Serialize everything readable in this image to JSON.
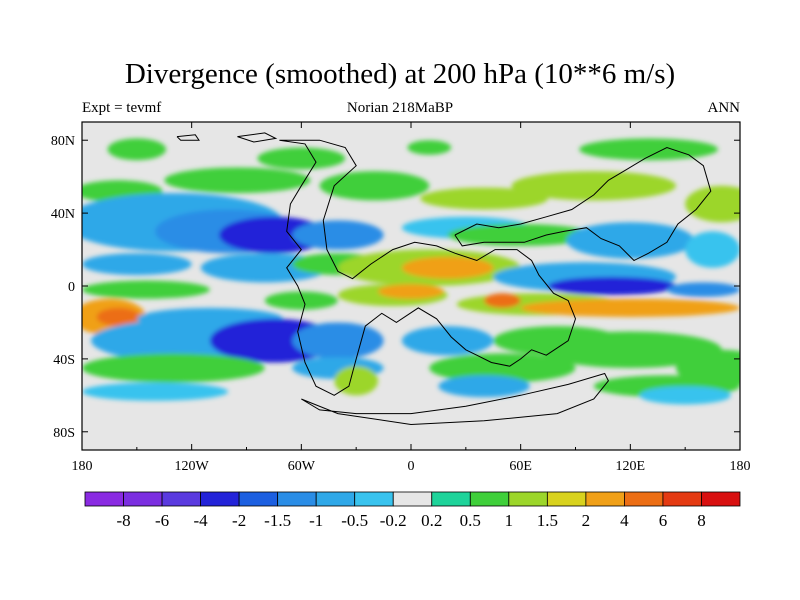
{
  "title": "Divergence (smoothed) at 200 hPa (10**6 m/s)",
  "subtitle_left": "Expt = tevmf",
  "subtitle_center": "Norian 218MaBP",
  "subtitle_right": "ANN",
  "chart_data": {
    "type": "heatmap",
    "title": "Divergence (smoothed) at 200 hPa (10**6 m/s)",
    "xlabel": "",
    "ylabel": "",
    "xlim": [
      -180,
      180
    ],
    "ylim": [
      -90,
      90
    ],
    "x_ticks": [
      -180,
      -120,
      -60,
      0,
      60,
      120,
      180
    ],
    "x_tick_labels": [
      "180",
      "120W",
      "60W",
      "0",
      "60E",
      "120E",
      "180"
    ],
    "y_ticks": [
      80,
      40,
      0,
      -40,
      -80
    ],
    "y_tick_labels": [
      "80N",
      "40N",
      "0",
      "40S",
      "80S"
    ],
    "colorbar": {
      "labels": [
        "-8",
        "-6",
        "-4",
        "-2",
        "-1.5",
        "-1",
        "-0.5",
        "-0.2",
        "0.2",
        "0.5",
        "1",
        "1.5",
        "2",
        "4",
        "6",
        "8"
      ],
      "colors": [
        "#8a2be2",
        "#7b2ee0",
        "#5a3adf",
        "#2323d8",
        "#1c5fe0",
        "#2a8de6",
        "#2fa8e8",
        "#39c3ee",
        "#e6e6e6",
        "#1ed39a",
        "#3fcf3a",
        "#9cd62a",
        "#d8d21e",
        "#f0a018",
        "#ec6e14",
        "#e43a12",
        "#d81010"
      ]
    },
    "background_color": "#e6e6e6",
    "blobs": [
      {
        "lon": -150,
        "lat": 75,
        "rx": 16,
        "ry": 6,
        "value": 0.7
      },
      {
        "lon": -60,
        "lat": 70,
        "rx": 24,
        "ry": 6,
        "value": 0.7
      },
      {
        "lon": 10,
        "lat": 76,
        "rx": 12,
        "ry": 4,
        "value": 0.7
      },
      {
        "lon": 130,
        "lat": 75,
        "rx": 38,
        "ry": 6,
        "value": 0.7
      },
      {
        "lon": -160,
        "lat": 52,
        "rx": 24,
        "ry": 6,
        "value": 0.8
      },
      {
        "lon": -95,
        "lat": 58,
        "rx": 40,
        "ry": 7,
        "value": 0.7
      },
      {
        "lon": -20,
        "lat": 55,
        "rx": 30,
        "ry": 8,
        "value": 0.8
      },
      {
        "lon": 40,
        "lat": 48,
        "rx": 35,
        "ry": 6,
        "value": 1.2
      },
      {
        "lon": 100,
        "lat": 55,
        "rx": 45,
        "ry": 8,
        "value": 1.0
      },
      {
        "lon": 170,
        "lat": 45,
        "rx": 20,
        "ry": 10,
        "value": 1.0
      },
      {
        "lon": -130,
        "lat": 35,
        "rx": 60,
        "ry": 16,
        "value": -0.6
      },
      {
        "lon": -100,
        "lat": 30,
        "rx": 40,
        "ry": 12,
        "value": -1.2
      },
      {
        "lon": -75,
        "lat": 28,
        "rx": 30,
        "ry": 10,
        "value": -3
      },
      {
        "lon": -40,
        "lat": 28,
        "rx": 25,
        "ry": 8,
        "value": -1.2
      },
      {
        "lon": 30,
        "lat": 32,
        "rx": 35,
        "ry": 6,
        "value": -0.3
      },
      {
        "lon": 60,
        "lat": 28,
        "rx": 40,
        "ry": 6,
        "value": 0.6
      },
      {
        "lon": 120,
        "lat": 25,
        "rx": 35,
        "ry": 10,
        "value": -0.6
      },
      {
        "lon": 165,
        "lat": 20,
        "rx": 15,
        "ry": 10,
        "value": -0.4
      },
      {
        "lon": -150,
        "lat": 12,
        "rx": 30,
        "ry": 6,
        "value": -0.6
      },
      {
        "lon": -145,
        "lat": -2,
        "rx": 35,
        "ry": 5,
        "value": 0.6
      },
      {
        "lon": -80,
        "lat": 10,
        "rx": 35,
        "ry": 8,
        "value": -0.6
      },
      {
        "lon": -40,
        "lat": 12,
        "rx": 25,
        "ry": 6,
        "value": 0.6
      },
      {
        "lon": 10,
        "lat": 10,
        "rx": 50,
        "ry": 10,
        "value": 1.2
      },
      {
        "lon": 20,
        "lat": 10,
        "rx": 25,
        "ry": 6,
        "value": 3
      },
      {
        "lon": 95,
        "lat": 5,
        "rx": 50,
        "ry": 8,
        "value": -0.7
      },
      {
        "lon": 110,
        "lat": 0,
        "rx": 35,
        "ry": 5,
        "value": -3
      },
      {
        "lon": 160,
        "lat": -2,
        "rx": 20,
        "ry": 4,
        "value": -1.2
      },
      {
        "lon": -10,
        "lat": -5,
        "rx": 30,
        "ry": 6,
        "value": 1.2
      },
      {
        "lon": 0,
        "lat": -3,
        "rx": 18,
        "ry": 4,
        "value": 3
      },
      {
        "lon": -60,
        "lat": -8,
        "rx": 20,
        "ry": 5,
        "value": 0.7
      },
      {
        "lon": 70,
        "lat": -10,
        "rx": 45,
        "ry": 6,
        "value": 1.2
      },
      {
        "lon": 50,
        "lat": -8,
        "rx": 10,
        "ry": 4,
        "value": 5
      },
      {
        "lon": 120,
        "lat": -12,
        "rx": 60,
        "ry": 5,
        "value": 3
      },
      {
        "lon": -165,
        "lat": -17,
        "rx": 20,
        "ry": 10,
        "value": 3
      },
      {
        "lon": -160,
        "lat": -17,
        "rx": 12,
        "ry": 5,
        "value": 5
      },
      {
        "lon": -110,
        "lat": -18,
        "rx": 40,
        "ry": 6,
        "value": -0.6
      },
      {
        "lon": -120,
        "lat": -30,
        "rx": 55,
        "ry": 12,
        "value": -0.7
      },
      {
        "lon": -75,
        "lat": -30,
        "rx": 35,
        "ry": 12,
        "value": -3
      },
      {
        "lon": -40,
        "lat": -30,
        "rx": 25,
        "ry": 10,
        "value": -1.2
      },
      {
        "lon": 20,
        "lat": -30,
        "rx": 25,
        "ry": 8,
        "value": -0.6
      },
      {
        "lon": 120,
        "lat": -35,
        "rx": 50,
        "ry": 10,
        "value": 0.7
      },
      {
        "lon": 80,
        "lat": -30,
        "rx": 35,
        "ry": 8,
        "value": 0.7
      },
      {
        "lon": -130,
        "lat": -45,
        "rx": 50,
        "ry": 8,
        "value": 0.7
      },
      {
        "lon": -40,
        "lat": -45,
        "rx": 25,
        "ry": 6,
        "value": -0.6
      },
      {
        "lon": -30,
        "lat": -52,
        "rx": 12,
        "ry": 8,
        "value": 1.2
      },
      {
        "lon": 50,
        "lat": -45,
        "rx": 40,
        "ry": 8,
        "value": 0.7
      },
      {
        "lon": 170,
        "lat": -45,
        "rx": 25,
        "ry": 10,
        "value": 0.7
      },
      {
        "lon": -140,
        "lat": -58,
        "rx": 40,
        "ry": 5,
        "value": -0.3
      },
      {
        "lon": 40,
        "lat": -55,
        "rx": 25,
        "ry": 6,
        "value": -0.6
      },
      {
        "lon": 140,
        "lat": -55,
        "rx": 40,
        "ry": 6,
        "value": 0.7
      },
      {
        "lon": 150,
        "lat": -60,
        "rx": 25,
        "ry": 5,
        "value": -0.3
      }
    ],
    "coastlines": [
      [
        [
          -72,
          80
        ],
        [
          -58,
          78
        ],
        [
          -52,
          68
        ],
        [
          -60,
          55
        ],
        [
          -66,
          45
        ],
        [
          -68,
          30
        ],
        [
          -60,
          20
        ],
        [
          -68,
          10
        ],
        [
          -62,
          0
        ],
        [
          -58,
          -10
        ],
        [
          -62,
          -25
        ],
        [
          -58,
          -42
        ],
        [
          -52,
          -55
        ],
        [
          -42,
          -60
        ],
        [
          -34,
          -55
        ],
        [
          -30,
          -40
        ],
        [
          -25,
          -22
        ],
        [
          -16,
          -15
        ],
        [
          -8,
          -20
        ],
        [
          4,
          -12
        ],
        [
          14,
          -18
        ],
        [
          22,
          -28
        ],
        [
          30,
          -35
        ],
        [
          36,
          -38
        ],
        [
          44,
          -42
        ],
        [
          54,
          -44
        ],
        [
          60,
          -40
        ],
        [
          66,
          -35
        ],
        [
          74,
          -38
        ],
        [
          86,
          -30
        ],
        [
          90,
          -18
        ],
        [
          86,
          -8
        ],
        [
          78,
          -4
        ],
        [
          70,
          6
        ],
        [
          66,
          14
        ],
        [
          58,
          20
        ],
        [
          46,
          20
        ],
        [
          36,
          14
        ],
        [
          24,
          18
        ],
        [
          14,
          22
        ],
        [
          2,
          24
        ],
        [
          -10,
          20
        ],
        [
          -22,
          12
        ],
        [
          -32,
          4
        ],
        [
          -40,
          8
        ],
        [
          -46,
          20
        ],
        [
          -48,
          36
        ],
        [
          -42,
          55
        ],
        [
          -30,
          66
        ],
        [
          -36,
          76
        ],
        [
          -50,
          80
        ],
        [
          -72,
          80
        ]
      ],
      [
        [
          24,
          28
        ],
        [
          36,
          34
        ],
        [
          48,
          32
        ],
        [
          60,
          34
        ],
        [
          74,
          38
        ],
        [
          88,
          42
        ],
        [
          100,
          50
        ],
        [
          108,
          58
        ],
        [
          118,
          64
        ],
        [
          128,
          70
        ],
        [
          140,
          76
        ],
        [
          152,
          72
        ],
        [
          160,
          66
        ],
        [
          164,
          52
        ],
        [
          156,
          42
        ],
        [
          146,
          34
        ],
        [
          140,
          24
        ],
        [
          130,
          18
        ],
        [
          122,
          14
        ],
        [
          114,
          22
        ],
        [
          104,
          26
        ],
        [
          96,
          32
        ],
        [
          84,
          30
        ],
        [
          74,
          28
        ],
        [
          62,
          24
        ],
        [
          50,
          24
        ],
        [
          40,
          24
        ],
        [
          28,
          22
        ],
        [
          24,
          28
        ]
      ],
      [
        [
          -60,
          -62
        ],
        [
          -40,
          -70
        ],
        [
          0,
          -76
        ],
        [
          40,
          -74
        ],
        [
          80,
          -70
        ],
        [
          100,
          -62
        ],
        [
          108,
          -52
        ],
        [
          106,
          -48
        ],
        [
          86,
          -54
        ],
        [
          60,
          -60
        ],
        [
          30,
          -66
        ],
        [
          0,
          -70
        ],
        [
          -30,
          -70
        ],
        [
          -50,
          -68
        ],
        [
          -60,
          -62
        ]
      ],
      [
        [
          -95,
          82
        ],
        [
          -80,
          84
        ],
        [
          -74,
          81
        ],
        [
          -86,
          79
        ],
        [
          -95,
          82
        ]
      ],
      [
        [
          -128,
          82
        ],
        [
          -118,
          83
        ],
        [
          -116,
          80
        ],
        [
          -126,
          80
        ],
        [
          -128,
          82
        ]
      ]
    ]
  }
}
